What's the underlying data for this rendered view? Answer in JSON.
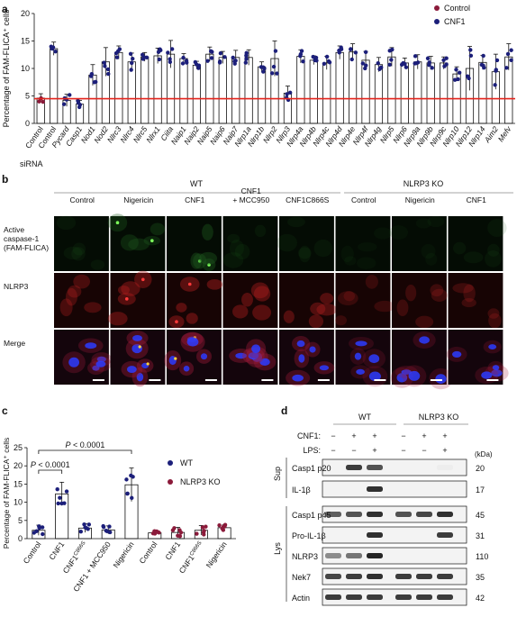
{
  "panels": {
    "a": "a",
    "b": "b",
    "c": "c",
    "d": "d"
  },
  "colors": {
    "control": "#8b1a3a",
    "cnf1": "#1c1f7a",
    "threshold": "#e3231c",
    "wt": "#1c1f7a",
    "ko": "#8b1a3a"
  },
  "chart_data": [
    {
      "type": "bar",
      "panel": "a",
      "ylabel": "Percentage of FAM-FLICA⁺ cells",
      "xlabel": "siRNA",
      "ylim": [
        0,
        20
      ],
      "yticks": [
        0,
        5,
        10,
        15,
        20
      ],
      "legend": [
        "Control",
        "CNF1"
      ],
      "legend_position": "top-right",
      "threshold_line": 4.5,
      "categories": [
        "Control",
        "Control",
        "Pycard",
        "Casp1",
        "Nod1",
        "Nod2",
        "Nlrc3",
        "Nlrc4",
        "Nlrc5",
        "Nlrx1",
        "Ciita",
        "Naip1",
        "Naip2",
        "Naip5",
        "Naip6",
        "Naip7",
        "Nlrp1a",
        "Nlrp1b",
        "Nlrp2",
        "Nlrp3",
        "Nlrp4a",
        "Nlrp4b",
        "Nlrp4c",
        "Nlrp4d",
        "Nlrp4e",
        "Nlrp4f",
        "Nlrp4g",
        "Nlrp5",
        "Nlrp6",
        "Nlrp9a",
        "Nlrp9b",
        "Nlrp9c",
        "Nlrp10",
        "Nlrp12",
        "Nlrp14",
        "Aim2",
        "Mefv"
      ],
      "italic_from": 2,
      "values": [
        4.6,
        13.6,
        4.2,
        3.5,
        8.8,
        11.2,
        12.9,
        11.2,
        12.1,
        12.3,
        12.6,
        11.8,
        10.6,
        12.6,
        12.0,
        12.0,
        12.0,
        10.3,
        11.8,
        5.5,
        12.2,
        11.5,
        11.0,
        12.9,
        13.0,
        11.5,
        10.7,
        12.1,
        11.0,
        11.2,
        11.0,
        11.0,
        9.0,
        10.0,
        11.1,
        9.4,
        12.1
      ],
      "errors": [
        0.8,
        1.2,
        1.1,
        0.7,
        1.9,
        2.6,
        1.2,
        1.6,
        0.8,
        1.4,
        2.5,
        0.9,
        0.7,
        1.3,
        1.1,
        1.3,
        1.4,
        0.9,
        3.2,
        1.3,
        1.2,
        0.8,
        1.2,
        1.2,
        1.5,
        1.6,
        1.3,
        1.7,
        0.9,
        1.3,
        1.2,
        1.1,
        1.3,
        4.0,
        1.3,
        3.2,
        2.4
      ],
      "point_groups": [
        0,
        1
      ]
    },
    {
      "type": "bar",
      "panel": "c",
      "ylabel": "Percentage of FAM-FLICA⁺ cells",
      "ylim": [
        0,
        25
      ],
      "yticks": [
        0,
        5,
        10,
        15,
        20,
        25
      ],
      "legend": [
        "WT",
        "NLRP3 KO"
      ],
      "legend_position": "top-right",
      "categories": [
        "Control",
        "CNF1",
        "CNF1 C866S",
        "CNF1 + MCC950",
        "Nigericin",
        "Control",
        "CNF1",
        "CNF1 C866S",
        "Nigericin"
      ],
      "series_index": [
        0,
        0,
        0,
        0,
        0,
        1,
        1,
        1,
        1
      ],
      "values": [
        2.3,
        12.3,
        2.9,
        2.4,
        14.8,
        1.6,
        1.7,
        2.3,
        3.0
      ],
      "errors": [
        1.4,
        3.2,
        1.2,
        1.1,
        4.6,
        0.6,
        1.4,
        1.3,
        0.8
      ],
      "annotations": [
        {
          "text": "P < 0.0001",
          "from": 0,
          "to": 1
        },
        {
          "text": "P < 0.0001",
          "from": 0,
          "to": 4
        }
      ]
    }
  ],
  "panel_b": {
    "group_wt": "WT",
    "group_ko": "NLRP3 KO",
    "columns": [
      "Control",
      "Nigericin",
      "CNF1",
      "CNF1\n+ MCC950",
      "CNF1C866S",
      "Control",
      "Nigericin",
      "CNF1"
    ],
    "rows": [
      "Active\ncaspase-1\n(FAM-FLICA)",
      "NLRP3",
      "Merge"
    ]
  },
  "panel_d": {
    "group_wt": "WT",
    "group_ko": "NLRP3 KO",
    "cnf1_label": "CNF1:",
    "lps_label": "LPS:",
    "cnf1_values": [
      "−",
      "+",
      "+",
      "−",
      "+",
      "+"
    ],
    "lps_values": [
      "−",
      "−",
      "+",
      "−",
      "−",
      "+"
    ],
    "kda_label": "(kDa)",
    "sup_label": "Sup",
    "lys_label": "Lys",
    "blots": [
      {
        "label": "Casp1 p20",
        "kda": "20",
        "section": "sup",
        "lanes": [
          0,
          0.85,
          0.75,
          0,
          0,
          0.08
        ]
      },
      {
        "label": "IL-1β",
        "kda": "17",
        "section": "sup",
        "lanes": [
          0,
          0,
          0.9,
          0,
          0,
          0
        ]
      },
      {
        "label": "Casp1 p45",
        "kda": "45",
        "section": "lys",
        "lanes": [
          0.7,
          0.75,
          0.9,
          0.75,
          0.8,
          0.9
        ]
      },
      {
        "label": "Pro-IL-1β",
        "kda": "31",
        "section": "lys",
        "lanes": [
          0,
          0,
          0.9,
          0,
          0,
          0.85
        ]
      },
      {
        "label": "NLRP3",
        "kda": "110",
        "section": "lys",
        "lanes": [
          0.5,
          0.6,
          0.95,
          0,
          0,
          0
        ]
      },
      {
        "label": "Nek7",
        "kda": "35",
        "section": "lys",
        "lanes": [
          0.8,
          0.85,
          0.9,
          0.85,
          0.85,
          0.85
        ]
      },
      {
        "label": "Actin",
        "kda": "42",
        "section": "lys",
        "lanes": [
          0.85,
          0.85,
          0.85,
          0.85,
          0.85,
          0.85
        ]
      }
    ]
  }
}
